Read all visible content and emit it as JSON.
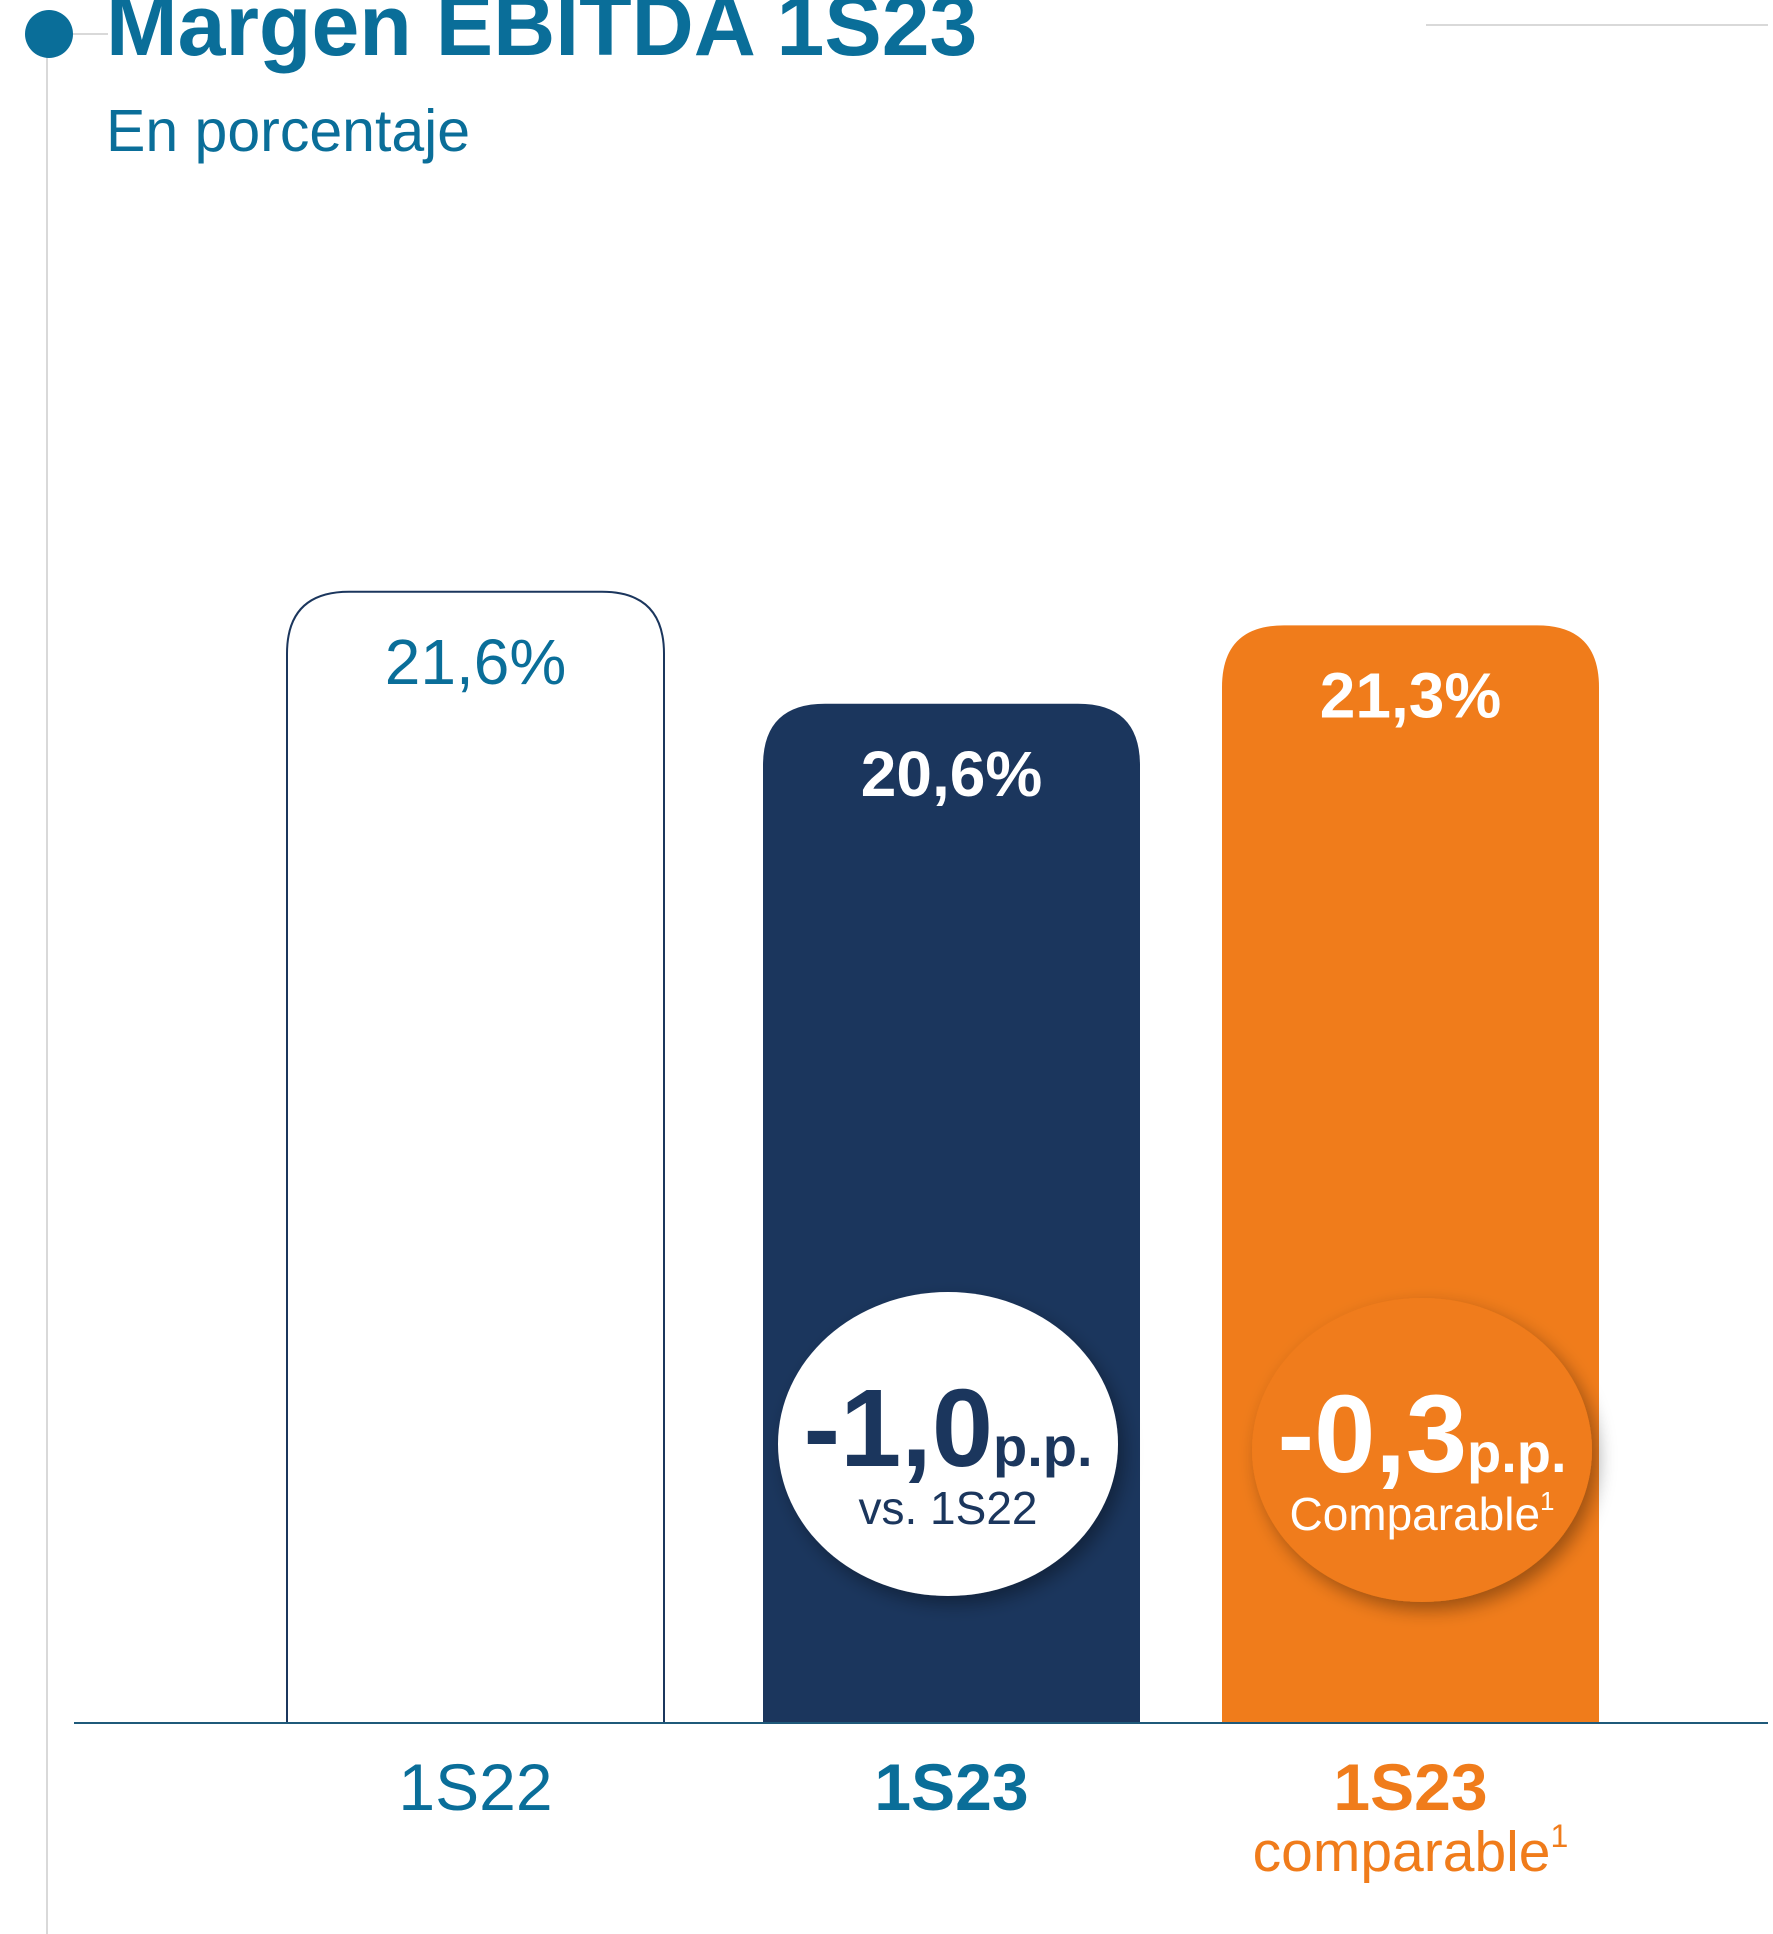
{
  "chart_data": {
    "type": "bar",
    "title": "Margen EBITDA 1S23",
    "subtitle": "En porcentaje",
    "categories": [
      "1S22",
      "1S23",
      "1S23"
    ],
    "category_sublabels": [
      null,
      null,
      "comparable"
    ],
    "category_footnotes": [
      null,
      null,
      "1"
    ],
    "values": [
      21.6,
      20.6,
      21.3
    ],
    "value_labels": [
      "21,6%",
      "20,6%",
      "21,3%"
    ],
    "colors": [
      "#ffffff",
      "#1b365d",
      "#f07c1b"
    ],
    "ylim": [
      11.5,
      25
    ],
    "annotations": [
      {
        "value": -1.0,
        "label": "-1,0",
        "unit": "p.p.",
        "note": "vs. 1S22"
      },
      {
        "value": -0.3,
        "label": "-0,3",
        "unit": "p.p.",
        "note": "Comparable",
        "footnote": "1"
      }
    ]
  }
}
